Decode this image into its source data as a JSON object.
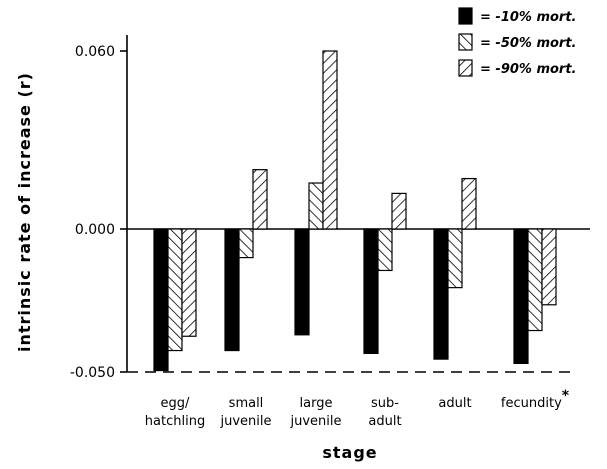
{
  "chart_data": {
    "type": "bar",
    "title": "",
    "xlabel": "stage",
    "ylabel": "intrinsic rate of increase (r)",
    "ylim": [
      -0.05,
      0.06
    ],
    "yticks": [
      "0.060",
      "0.000",
      "-0.050"
    ],
    "y_tick_values": [
      0.06,
      0.0,
      -0.05
    ],
    "categories": [
      [
        "egg/",
        "hatchling"
      ],
      [
        "small",
        "juvenile"
      ],
      [
        "large",
        "juvenile"
      ],
      [
        "sub-",
        "adult"
      ],
      [
        "adult"
      ],
      [
        "fecundity"
      ]
    ],
    "category_marks": [
      "",
      "",
      "",
      "",
      "",
      "*"
    ],
    "series": [
      {
        "name": "= -10% mort.",
        "pattern": "solid",
        "values": [
          -0.0495,
          -0.0425,
          -0.037,
          -0.0435,
          -0.0455,
          -0.047
        ]
      },
      {
        "name": "= -50% mort.",
        "pattern": "hatch-right",
        "values": [
          -0.0425,
          -0.01,
          0.0155,
          -0.0145,
          -0.0205,
          -0.0355
        ]
      },
      {
        "name": "= -90% mort.",
        "pattern": "hatch-left",
        "values": [
          -0.0375,
          0.02,
          0.06,
          0.012,
          0.017,
          -0.0265
        ]
      }
    ],
    "reference_line": -0.05,
    "legend_position": "top-right",
    "grid": false,
    "colors": {
      "bar_fill": "#000000",
      "background": "#ffffff"
    }
  }
}
